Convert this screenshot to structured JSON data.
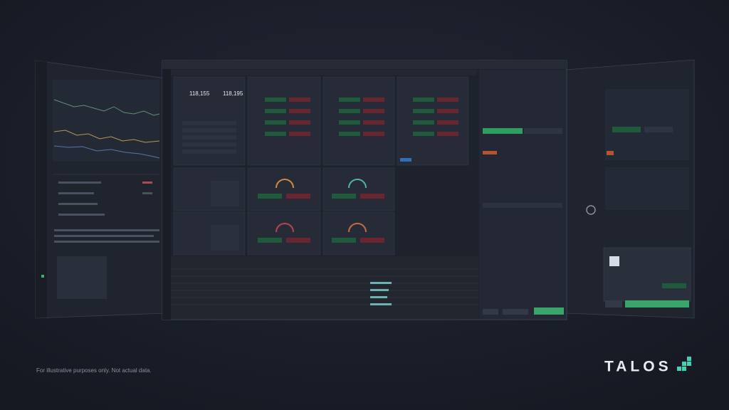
{
  "footer": {
    "disclaimer": "For illustrative purposes only. Not actual data."
  },
  "brand": {
    "name": "TALOS"
  }
}
